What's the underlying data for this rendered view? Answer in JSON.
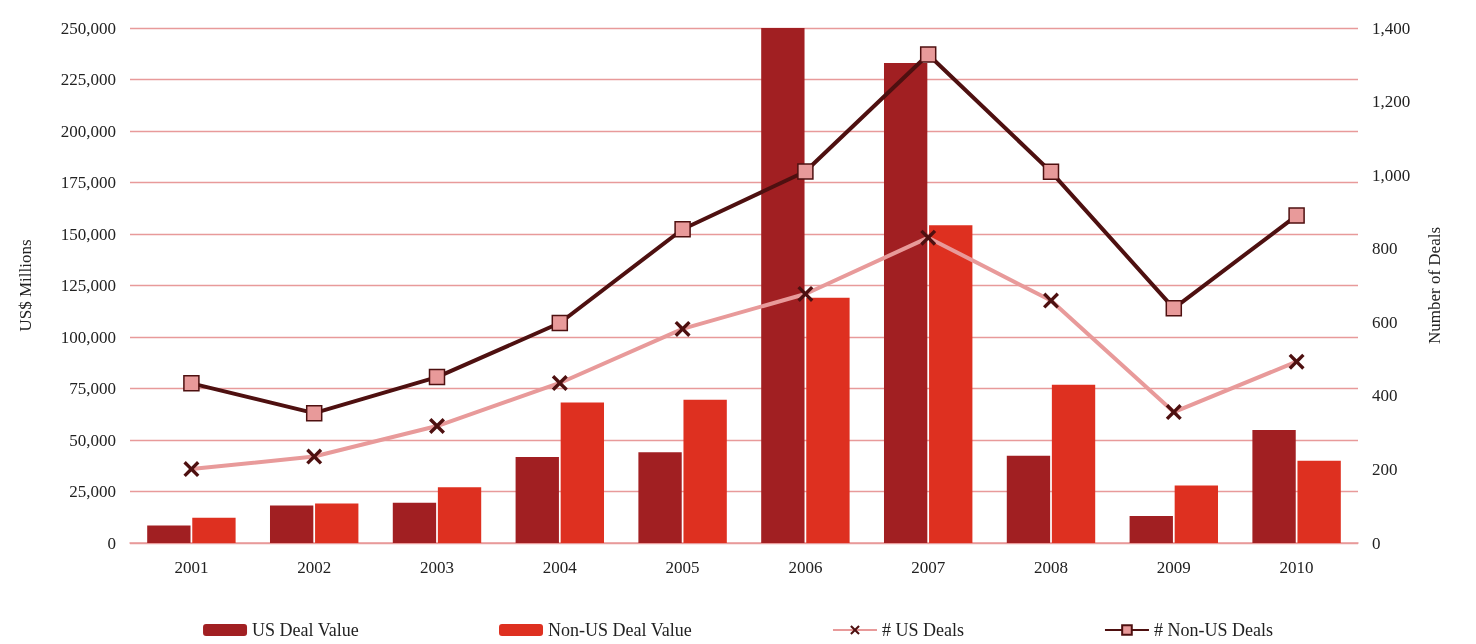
{
  "chart_data": {
    "type": "bar",
    "ylabel": "US$ Millions",
    "y2label": "Number of Deals",
    "categories": [
      "2001",
      "2002",
      "2003",
      "2004",
      "2005",
      "2006",
      "2007",
      "2008",
      "2009",
      "2010"
    ],
    "series": [
      {
        "name": "US Deal Value",
        "color": "#a11f22",
        "values": [
          8500,
          18200,
          19500,
          41700,
          44100,
          250000,
          233000,
          42300,
          13100,
          54800
        ]
      },
      {
        "name": "Non-US Deal Value",
        "color": "#de3020",
        "values": [
          12300,
          19200,
          27100,
          68200,
          69500,
          119100,
          154200,
          76800,
          27900,
          39900
        ]
      },
      {
        "name": "# US Deals",
        "type": "line",
        "axis": "y2",
        "marker": "cross",
        "color": "#e89a9a",
        "values": [
          201,
          235,
          318,
          435,
          582,
          677,
          830,
          659,
          356,
          493
        ]
      },
      {
        "name": "# Non-US Deals",
        "type": "line",
        "axis": "y2",
        "marker": "square",
        "color": "#4e1010",
        "values": [
          434,
          353,
          451,
          598,
          853,
          1010,
          1328,
          1009,
          638,
          890
        ]
      }
    ],
    "ylim": [
      0,
      250000
    ],
    "yticks": [
      0,
      {
        "value": 25000,
        "label": "25,000"
      },
      {
        "value": 50000,
        "label": "50,000"
      },
      {
        "value": 75000,
        "label": "75,000"
      },
      {
        "value": 100000,
        "label": "100,000"
      },
      {
        "value": 125000,
        "label": "125,000"
      },
      {
        "value": 150000,
        "label": "150,000"
      },
      {
        "value": 175000,
        "label": "175,000"
      },
      {
        "value": 200000,
        "label": "200,000"
      },
      {
        "value": 225000,
        "label": "225,000"
      },
      {
        "value": 250000,
        "label": "250,000"
      }
    ],
    "y2lim": [
      0,
      1400
    ],
    "y2ticks": [
      0,
      200,
      400,
      600,
      800,
      {
        "value": 1000,
        "label": "1,000"
      },
      {
        "value": 1200,
        "label": "1,200"
      },
      {
        "value": 1400,
        "label": "1,400"
      }
    ],
    "grid": "y",
    "legend": "bottom"
  }
}
